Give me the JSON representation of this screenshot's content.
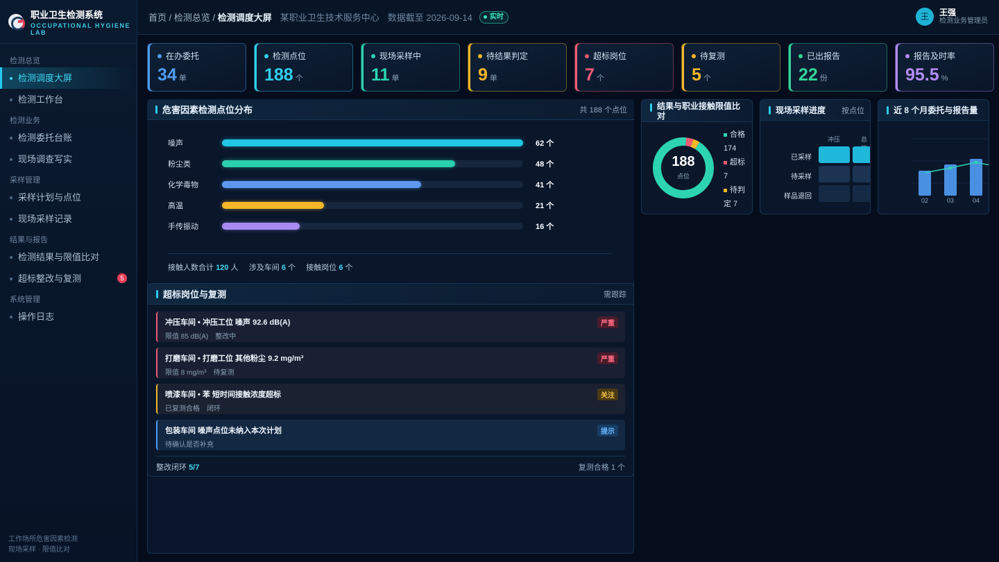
{
  "app": {
    "title": "职业卫生检测系统",
    "subtitle": "OCCUPATIONAL HYGIENE LAB"
  },
  "sidebar": {
    "groups": [
      {
        "label": "检测总览",
        "items": [
          {
            "label": "检测调度大屏"
          },
          {
            "label": "检测工作台"
          }
        ]
      },
      {
        "label": "检测业务",
        "items": [
          {
            "label": "检测委托台账"
          },
          {
            "label": "现场调查写实"
          }
        ]
      },
      {
        "label": "采样管理",
        "items": [
          {
            "label": "采样计划与点位"
          },
          {
            "label": "现场采样记录"
          }
        ]
      },
      {
        "label": "结果与报告",
        "items": [
          {
            "label": "检测结果与限值比对"
          },
          {
            "label": "超标整改与复测",
            "badge": "5"
          }
        ]
      },
      {
        "label": "系统管理",
        "items": [
          {
            "label": "操作日志"
          }
        ]
      }
    ],
    "footer": [
      "工作场所危害因素检测",
      "现场采样 · 限值比对"
    ]
  },
  "topbar": {
    "crumb1": "首页",
    "crumb2": "检测总览",
    "crumb3": "检测调度大屏",
    "org": "某职业卫生技术服务中心",
    "asof": "数据截至 2026-09-14",
    "live": "实时",
    "user": {
      "avatar": "王",
      "name": "王强",
      "role": "检测业务管理员"
    }
  },
  "kpis": [
    {
      "label": "在办委托",
      "value": "34",
      "unit": "单",
      "color": "#4e9cf5"
    },
    {
      "label": "检测点位",
      "value": "188",
      "unit": "个",
      "color": "#2fd0ec"
    },
    {
      "label": "现场采样中",
      "value": "11",
      "unit": "单",
      "color": "#2dd4b2"
    },
    {
      "label": "待结果判定",
      "value": "9",
      "unit": "单",
      "color": "#f5b82a"
    },
    {
      "label": "超标岗位",
      "value": "7",
      "unit": "个",
      "color": "#f05a73"
    },
    {
      "label": "待复测",
      "value": "5",
      "unit": "个",
      "color": "#f5b82a"
    },
    {
      "label": "已出报告",
      "value": "22",
      "unit": "份",
      "color": "#33d49a"
    },
    {
      "label": "报告及时率",
      "value": "95.5",
      "unit": "%",
      "color": "#b48cf7"
    }
  ],
  "hazard": {
    "title": "危害因素检测点位分布",
    "extra": "共 188 个点位",
    "rows": [
      {
        "name": "噪声",
        "value": 62,
        "label": "62 个",
        "color": "#22c7e6"
      },
      {
        "name": "粉尘类",
        "value": 48,
        "label": "48 个",
        "color": "#2bd0ae"
      },
      {
        "name": "化学毒物",
        "value": 41,
        "label": "41 个",
        "color": "#5c9af0"
      },
      {
        "name": "高温",
        "value": 21,
        "label": "21 个",
        "color": "#f5b82a"
      },
      {
        "name": "手传振动",
        "value": 16,
        "label": "16 个",
        "color": "#a98af3"
      }
    ],
    "max": 62,
    "summary": {
      "p1": "接触人数合计",
      "v1": "120",
      "u1": "人",
      "p2": "涉及车间",
      "v2": "6",
      "u2": "个",
      "p3": "接触岗位",
      "v3": "6",
      "u3": "个"
    }
  },
  "overlimit": {
    "title": "超标岗位与复测",
    "extra": "需跟踪",
    "items": [
      {
        "title": "冲压车间 • 冲压工位 噪声 92.6 dB(A)",
        "sub": "限值 85 dB(A)　整改中",
        "tag": "严重",
        "level": "severe"
      },
      {
        "title": "打磨车间 • 打磨工位 其他粉尘 9.2 mg/m³",
        "sub": "限值 8 mg/m³　待复测",
        "tag": "严重",
        "level": "severe"
      },
      {
        "title": "喷漆车间 • 苯 短时间接触浓度超标",
        "sub": "已复测合格　闭环",
        "tag": "关注",
        "level": "watch"
      },
      {
        "title": "包装车间 噪声点位未纳入本次计划",
        "sub": "待确认是否补充",
        "tag": "提示",
        "level": "info"
      }
    ],
    "footer_label": "整改闭环",
    "footer_value": "5/7",
    "footer_right": "复测合格 1 个"
  },
  "compare": {
    "title": "结果与职业接触限值比对",
    "total": "188",
    "total_unit": "点位",
    "legend": [
      {
        "name": "合格",
        "value": "174",
        "color": "#2dd4b2"
      },
      {
        "name": "超标",
        "value": "7",
        "color": "#f05a73"
      },
      {
        "name": "待判定",
        "value": "7",
        "color": "#f5b82a"
      }
    ]
  },
  "progress": {
    "title": "现场采样进度",
    "extra": "按点位",
    "columns": [
      "冲压",
      "总装"
    ],
    "rows": [
      "已采样",
      "待采样",
      "样品退回"
    ]
  },
  "monthly": {
    "title": "近 8 个月委托与报告量",
    "months": [
      "02",
      "03",
      "04"
    ]
  },
  "chart_data": [
    {
      "type": "bar",
      "title": "危害因素检测点位分布",
      "categories": [
        "噪声",
        "粉尘类",
        "化学毒物",
        "高温",
        "手传振动"
      ],
      "values": [
        62,
        48,
        41,
        21,
        16
      ]
    },
    {
      "type": "pie",
      "title": "结果与职业接触限值比对",
      "categories": [
        "合格",
        "超标",
        "待判定"
      ],
      "values": [
        174,
        7,
        7
      ]
    }
  ]
}
